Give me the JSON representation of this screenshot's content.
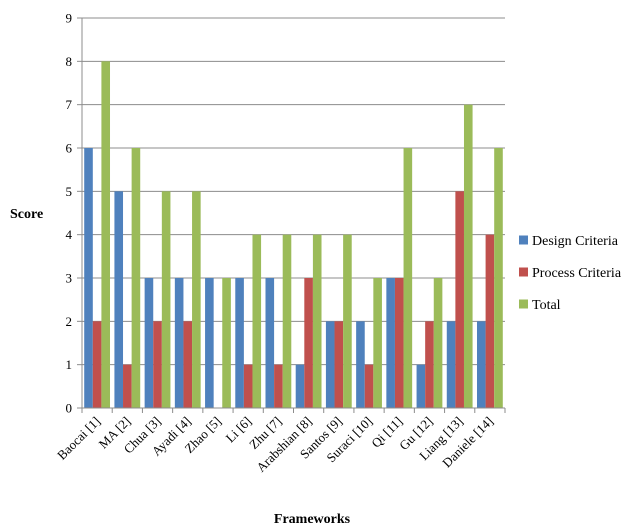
{
  "chart_data": {
    "type": "bar",
    "title": "",
    "xlabel": "Frameworks",
    "ylabel": "Score",
    "ylim": [
      0,
      9
    ],
    "yticks": [
      0,
      1,
      2,
      3,
      4,
      5,
      6,
      7,
      8,
      9
    ],
    "grid": true,
    "legend_position": "right",
    "categories": [
      "Baocai [1]",
      "MA [2]",
      "Chua [3]",
      "Ayadi [4]",
      "Zhao [5]",
      "Li [6]",
      "Zhu [7]",
      "Arabshian [8]",
      "Santos [9]",
      "Suraci [10]",
      "Qi [11]",
      "Gu [12]",
      "Liang [13]",
      "Daniele [14]"
    ],
    "series": [
      {
        "name": "Design Criteria",
        "color": "#4f81bd",
        "values": [
          6,
          5,
          3,
          3,
          3,
          3,
          3,
          1,
          2,
          2,
          3,
          1,
          2,
          2
        ]
      },
      {
        "name": "Process Criteria",
        "color": "#c0504d",
        "values": [
          2,
          1,
          2,
          2,
          0,
          1,
          1,
          3,
          2,
          1,
          3,
          2,
          5,
          4
        ]
      },
      {
        "name": "Total",
        "color": "#9bbb59",
        "values": [
          8,
          6,
          5,
          5,
          3,
          4,
          4,
          4,
          4,
          3,
          6,
          3,
          7,
          6
        ]
      }
    ]
  }
}
